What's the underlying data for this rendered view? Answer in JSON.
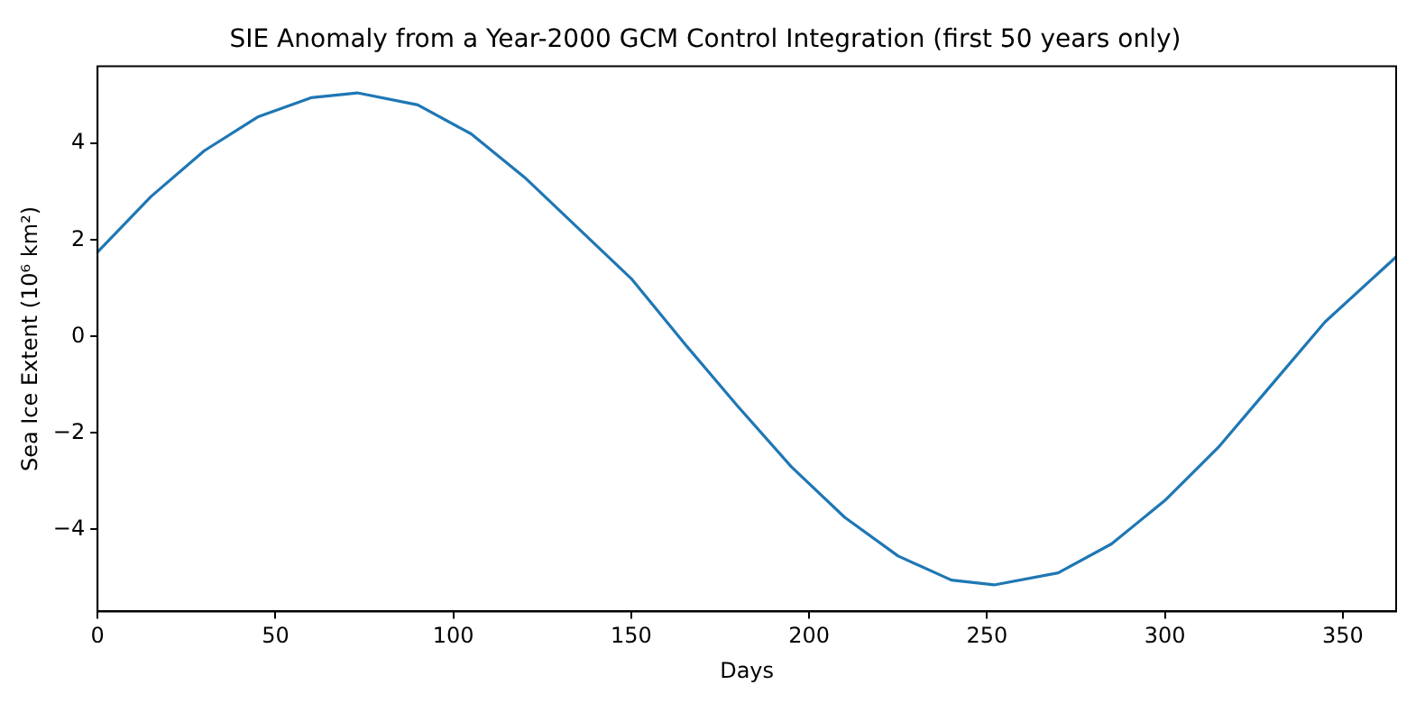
{
  "chart_data": {
    "type": "line",
    "title": "SIE Anomaly from a Year-2000 GCM Control Integration (first 50 years only)",
    "xlabel": "Days",
    "ylabel": "Sea Ice Extent (10⁶ km²)",
    "x": [
      0,
      15,
      30,
      45,
      60,
      73,
      90,
      105,
      120,
      135,
      150,
      165,
      180,
      195,
      210,
      225,
      240,
      252,
      270,
      285,
      300,
      315,
      330,
      345,
      365
    ],
    "series": [
      {
        "color": "#1f77b4",
        "values": [
          1.75,
          2.9,
          3.85,
          4.55,
          4.95,
          5.05,
          4.8,
          4.2,
          3.3,
          2.25,
          1.2,
          -0.15,
          -1.45,
          -2.7,
          -3.75,
          -4.55,
          -5.05,
          -5.15,
          -4.9,
          -4.3,
          -3.4,
          -2.3,
          -1.0,
          0.3,
          1.65
        ]
      }
    ],
    "xlim": [
      0,
      365
    ],
    "xticks": [
      0,
      50,
      100,
      150,
      200,
      250,
      300,
      350
    ],
    "ylim": [
      -5.7,
      5.6
    ],
    "yticks": [
      -4,
      -2,
      0,
      2,
      4
    ],
    "grid": false,
    "legend": false,
    "marker": "none",
    "line_style": "solid"
  }
}
